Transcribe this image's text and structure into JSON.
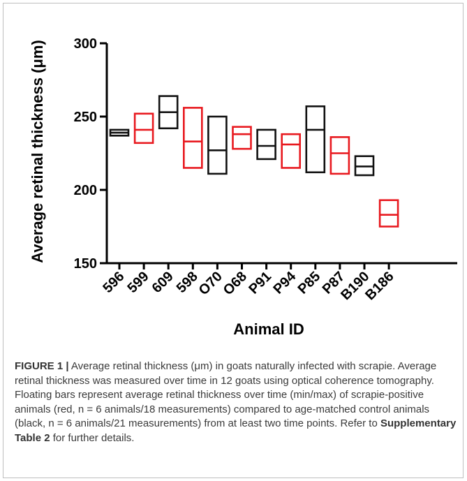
{
  "chart_data": {
    "type": "floating-bar",
    "xlabel": "Animal ID",
    "ylabel": "Average retinal thickness (μm)",
    "ylim": [
      150,
      300
    ],
    "yticks": [
      "150",
      "200",
      "250",
      "300"
    ],
    "colors": {
      "red": "#e8191f",
      "black": "#111111"
    },
    "categories": [
      "596",
      "599",
      "609",
      "598",
      "O70",
      "O68",
      "P91",
      "P94",
      "P85",
      "P87",
      "B190",
      "B186"
    ],
    "bars": [
      {
        "id": "596",
        "group": "black",
        "min": 237,
        "mean": 239,
        "max": 241
      },
      {
        "id": "599",
        "group": "red",
        "min": 232,
        "mean": 241,
        "max": 252
      },
      {
        "id": "609",
        "group": "black",
        "min": 242,
        "mean": 253,
        "max": 264
      },
      {
        "id": "598",
        "group": "red",
        "min": 215,
        "mean": 233,
        "max": 256
      },
      {
        "id": "O70",
        "group": "black",
        "min": 211,
        "mean": 227,
        "max": 250
      },
      {
        "id": "O68",
        "group": "red",
        "min": 228,
        "mean": 238,
        "max": 243
      },
      {
        "id": "P91",
        "group": "black",
        "min": 221,
        "mean": 230,
        "max": 241
      },
      {
        "id": "P94",
        "group": "red",
        "min": 215,
        "mean": 231,
        "max": 238
      },
      {
        "id": "P85",
        "group": "black",
        "min": 212,
        "mean": 241,
        "max": 257
      },
      {
        "id": "P87",
        "group": "red",
        "min": 211,
        "mean": 225,
        "max": 236
      },
      {
        "id": "B190",
        "group": "black",
        "min": 210,
        "mean": 216,
        "max": 223
      },
      {
        "id": "B186",
        "group": "red",
        "min": 175,
        "mean": 183,
        "max": 193
      }
    ]
  },
  "caption": {
    "label": "FIGURE 1 |",
    "text": " Average retinal thickness (μm) in goats naturally infected with scrapie. Average retinal thickness was measured over time in 12 goats using optical coherence tomography. Floating bars represent average retinal thickness over time (min/max) of scrapie-positive animals (red, n = 6 animals/18 measurements) compared to age-matched control animals (black, n = 6 animals/21 measurements) from at least two time points. Refer to ",
    "ref": "Supplementary Table 2",
    "tail": " for further details."
  }
}
